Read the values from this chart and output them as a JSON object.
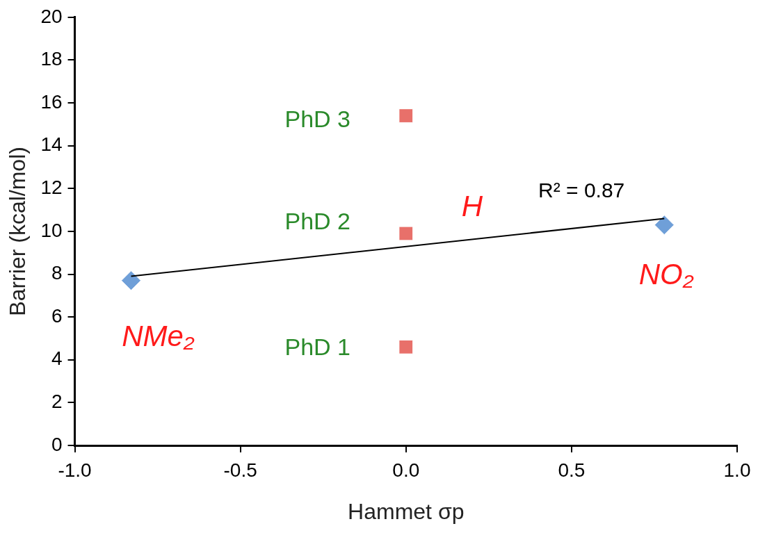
{
  "chart_data": {
    "type": "scatter",
    "xlabel": "Hammet σp",
    "ylabel": "Barrier (kcal/mol)",
    "xlim": [
      -1.0,
      1.0
    ],
    "xticks": [
      {
        "value": -1,
        "label": "-1.0"
      },
      {
        "value": -0.5,
        "label": "-0.5"
      },
      {
        "value": 0,
        "label": "0.0"
      },
      {
        "value": 0.5,
        "label": "0.5"
      },
      {
        "value": 1,
        "label": "1.0"
      }
    ],
    "ylim": [
      0,
      20
    ],
    "yticks": [
      0,
      2,
      4,
      6,
      8,
      10,
      12,
      14,
      16,
      18,
      20
    ],
    "grid": false,
    "legend": false,
    "series": [
      {
        "marker": "diamond",
        "color": "#6f9fd8",
        "x": [
          -0.83,
          0.78
        ],
        "values": [
          7.7,
          10.3
        ]
      },
      {
        "marker": "square",
        "color": "#e8706a",
        "x": [
          0,
          0,
          0
        ],
        "values": [
          4.6,
          9.9,
          15.4
        ]
      },
      {
        "type": "line",
        "marker": "none",
        "color": "#000000",
        "x": [
          -0.83,
          0.78
        ],
        "values": [
          7.9,
          10.6
        ]
      }
    ],
    "annotations": [
      {
        "text": "PhD 3",
        "x": 0,
        "y": 15.4
      },
      {
        "text": "PhD 2",
        "x": 0,
        "y": 9.9
      },
      {
        "text": "PhD 1",
        "x": 0,
        "y": 4.6
      },
      {
        "text": "NMe₂",
        "x": -0.83,
        "y": 7.7
      },
      {
        "text": "H",
        "x": 0.2,
        "y": 9.6
      },
      {
        "text": "NO₂",
        "x": 0.78,
        "y": 10.3
      },
      {
        "text": "R² = 0.87",
        "x": 0.53,
        "y": 10.2
      }
    ]
  }
}
